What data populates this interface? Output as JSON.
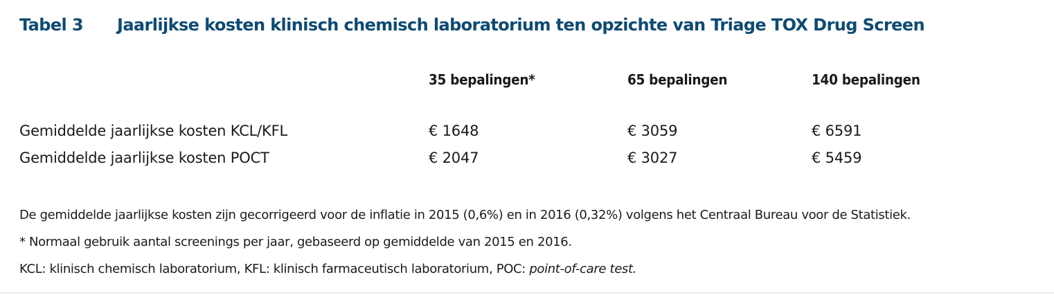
{
  "table": {
    "label": "Tabel 3",
    "title": "Jaarlijkse kosten klinisch chemisch laboratorium ten opzichte van Triage TOX Drug Screen",
    "columns": [
      "35 bepalingen*",
      "65 bepalingen",
      "140 bepalingen"
    ],
    "rows": [
      {
        "label": "Gemiddelde jaarlijkse kosten KCL/KFL",
        "values": [
          "€ 1648",
          "€ 3059",
          "€ 6591"
        ]
      },
      {
        "label": "Gemiddelde jaarlijkse kosten POCT",
        "values": [
          "€ 2047",
          "€ 3027",
          "€ 5459"
        ]
      }
    ]
  },
  "notes": {
    "line1": "De gemiddelde jaarlijkse kosten zijn gecorrigeerd voor de inflatie in 2015 (0,6%) en in 2016 (0,32%) volgens het Centraal Bureau voor de Statistiek.",
    "line2": "* Normaal gebruik aantal screenings per jaar, gebaseerd op gemiddelde van 2015 en 2016.",
    "line3_prefix": "KCL: klinisch chemisch laboratorium, KFL: klinisch farmaceutisch laboratorium, POC: ",
    "line3_italic": "point-of-care test."
  },
  "colors": {
    "title": "#0d4a73",
    "text": "#1a1a1a"
  }
}
